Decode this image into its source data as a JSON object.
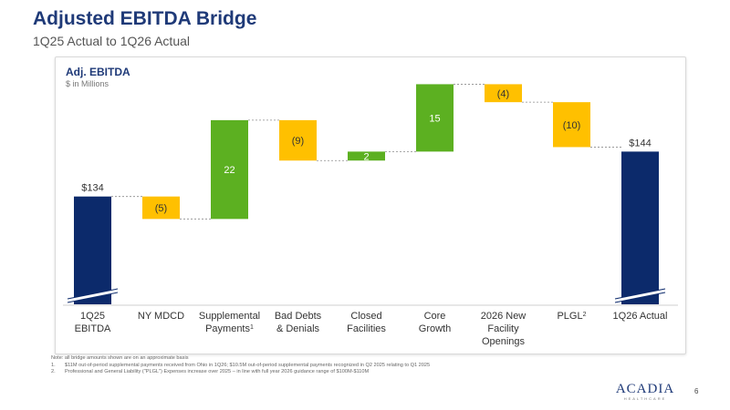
{
  "header": {
    "title": "Adjusted EBITDA Bridge",
    "subtitle": "1Q25 Actual to 1Q26 Actual"
  },
  "chart_data": {
    "type": "waterfall",
    "title": "Adj. EBITDA",
    "subtitle": "$ in Millions",
    "categories": [
      {
        "label": "1Q25 EBITDA",
        "lines": [
          "1Q25",
          "EBITDA"
        ],
        "sup": ""
      },
      {
        "label": "NY MDCD",
        "lines": [
          "NY MDCD"
        ],
        "sup": ""
      },
      {
        "label": "Supplemental Payments",
        "lines": [
          "Supplemental",
          "Payments"
        ],
        "sup": "1"
      },
      {
        "label": "Bad Debts & Denials",
        "lines": [
          "Bad Debts",
          "& Denials"
        ],
        "sup": ""
      },
      {
        "label": "Closed Facilities",
        "lines": [
          "Closed",
          "Facilities"
        ],
        "sup": ""
      },
      {
        "label": "Core Growth",
        "lines": [
          "Core",
          "Growth"
        ],
        "sup": ""
      },
      {
        "label": "2026 New Facility Openings",
        "lines": [
          "2026 New",
          "Facility",
          "Openings"
        ],
        "sup": ""
      },
      {
        "label": "PLGL",
        "lines": [
          "PLGL"
        ],
        "sup": "2"
      },
      {
        "label": "1Q26 Actual",
        "lines": [
          "1Q26 Actual"
        ],
        "sup": ""
      }
    ],
    "values": [
      134,
      -5,
      22,
      -9,
      2,
      15,
      -4,
      -10,
      144
    ],
    "kinds": [
      "total",
      "decrease",
      "increase",
      "decrease",
      "increase",
      "increase",
      "decrease",
      "decrease",
      "total"
    ],
    "value_labels": [
      "$134",
      "(5)",
      "22",
      "(9)",
      "2",
      "15",
      "(4)",
      "(10)",
      "$144"
    ],
    "axis_break": true,
    "colors": {
      "total": "#0c2a6b",
      "increase": "#5cb021",
      "decrease": "#ffc000",
      "connector": "#8c8c8c"
    }
  },
  "notes": {
    "intro": "Note: all bridge amounts shown are on an approximate basis",
    "items": [
      {
        "num": "1.",
        "text": "$11M out-of-period supplemental payments received from Ohio in 1Q26; $10.5M out-of-period supplemental payments recognized in Q2 2025 relating to Q1 2025"
      },
      {
        "num": "2.",
        "text": "Professional and General Liability (\"PLGL\") Expenses increase over 2025 – in line with full year 2026 guidance range of $100M-$110M"
      }
    ]
  },
  "footer": {
    "logo_name": "ACADIA",
    "logo_tagline": "HEALTHCARE",
    "page_number": "6"
  }
}
